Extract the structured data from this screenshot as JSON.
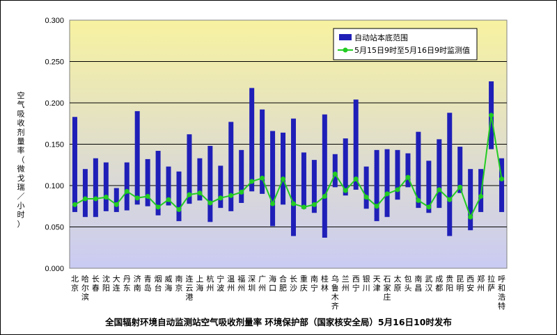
{
  "chart_data": {
    "type": "bar",
    "title": "全国辐射环境自动监测站空气吸收剂量率 环境保护部（国家核安全局）5月16日10时发布",
    "ylabel": "空气吸收剂量率（微戈瑞／小时）",
    "xlabel": "",
    "ylim": [
      0,
      0.3
    ],
    "yticks": [
      "0.000",
      "0.050",
      "0.100",
      "0.150",
      "0.200",
      "0.250",
      "0.300"
    ],
    "grid": true,
    "legend_position": "top-right",
    "categories": [
      "北京",
      "哈尔滨",
      "长春",
      "沈阳",
      "大连",
      "丹东",
      "济南",
      "青岛",
      "烟台",
      "威海",
      "南京",
      "连云港",
      "上海",
      "杭州",
      "宁波",
      "温州",
      "福州",
      "深圳",
      "广州",
      "海口",
      "合肥",
      "长沙",
      "重庆",
      "南宁",
      "桂林",
      "乌鲁木齐",
      "兰州",
      "西宁",
      "银川",
      "天津",
      "石家庄",
      "太原",
      "包头",
      "南昌",
      "武汉",
      "成都",
      "贵阳",
      "昆明",
      "西安",
      "郑州",
      "拉萨",
      "呼和浩特"
    ],
    "series": [
      {
        "name": "自动站本底范围",
        "type": "range-bar",
        "color": "#1f1fb8",
        "low": [
          0.068,
          0.062,
          0.062,
          0.069,
          0.068,
          0.07,
          0.077,
          0.075,
          0.064,
          0.076,
          0.057,
          0.078,
          0.082,
          0.056,
          0.073,
          0.069,
          0.079,
          0.093,
          0.09,
          0.051,
          0.077,
          0.039,
          0.072,
          0.067,
          0.037,
          0.098,
          0.088,
          0.095,
          0.072,
          0.057,
          0.062,
          0.083,
          0.098,
          0.073,
          0.067,
          0.073,
          0.039,
          0.091,
          0.046,
          0.068,
          0.144,
          0.068
        ],
        "high": [
          0.183,
          0.12,
          0.133,
          0.128,
          0.097,
          0.128,
          0.19,
          0.132,
          0.142,
          0.123,
          0.117,
          0.162,
          0.133,
          0.148,
          0.124,
          0.177,
          0.143,
          0.218,
          0.192,
          0.166,
          0.164,
          0.181,
          0.14,
          0.131,
          0.186,
          0.138,
          0.157,
          0.204,
          0.123,
          0.143,
          0.144,
          0.143,
          0.139,
          0.165,
          0.13,
          0.156,
          0.188,
          0.147,
          0.12,
          0.12,
          0.226,
          0.133
        ]
      },
      {
        "name": "5月15日9时至5月16日9时监测值",
        "type": "line",
        "color": "#22cc22",
        "values": [
          0.077,
          0.084,
          0.084,
          0.086,
          0.077,
          0.093,
          0.085,
          0.087,
          0.074,
          0.083,
          0.071,
          0.089,
          0.091,
          0.079,
          0.085,
          0.088,
          0.092,
          0.105,
          0.109,
          0.078,
          0.108,
          0.078,
          0.074,
          0.077,
          0.087,
          0.114,
          0.094,
          0.108,
          0.086,
          0.075,
          0.09,
          0.095,
          0.11,
          0.082,
          0.074,
          0.095,
          0.083,
          0.098,
          0.062,
          0.087,
          0.185,
          0.108
        ]
      }
    ]
  },
  "colors": {
    "plot_top": "#f7f2a0",
    "plot_bottom": "#cacbf3",
    "bar": "#1f1fb8",
    "line": "#22cc22"
  }
}
